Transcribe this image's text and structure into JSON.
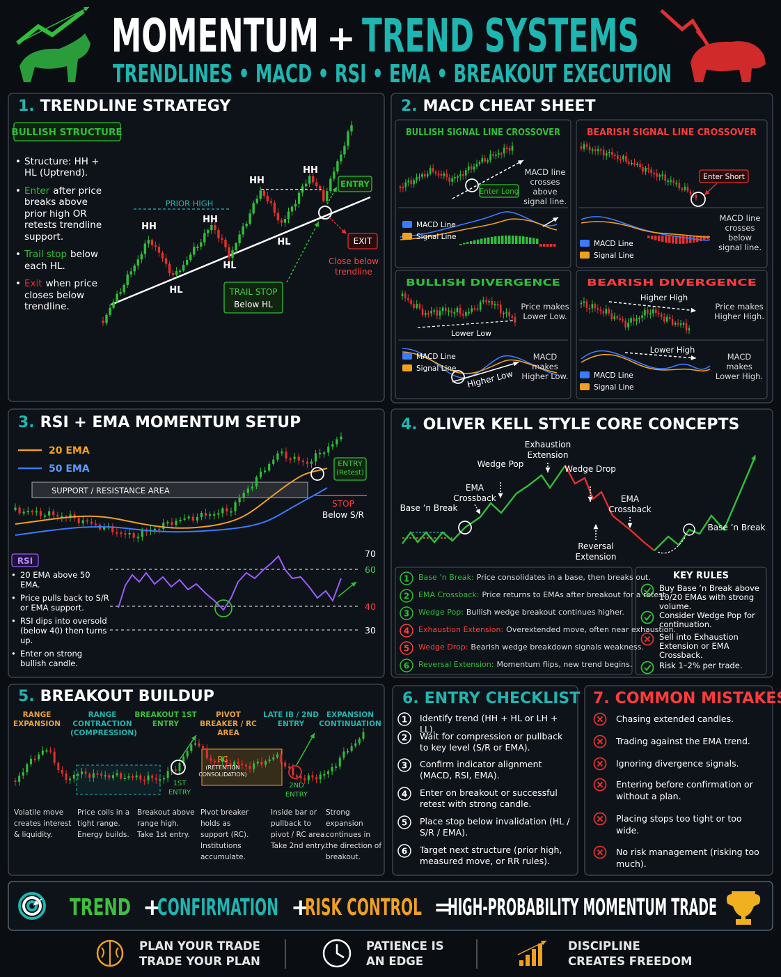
{
  "header": {
    "title_left": "MOMENTUM",
    "title_plus": "+",
    "title_right": "TREND SYSTEMS",
    "subtitle": "TRENDLINES • MACD • RSI • EMA • BREAKOUT EXECUTION"
  },
  "trendline": {
    "number": "1.",
    "title": "TRENDLINE STRATEGY",
    "badge": "BULLISH STRUCTURE",
    "bullets": [
      {
        "text": "Structure: HH + HL (Uptrend)."
      },
      {
        "lead": "Enter",
        "text": "after price breaks above prior high OR retests trendline support."
      },
      {
        "lead": "Trail stop",
        "text": "below each HL."
      },
      {
        "lead": "Exit",
        "text": "when price closes below trendline."
      }
    ],
    "swing_labels": [
      "HH",
      "HL",
      "HH",
      "HL",
      "HH",
      "HL",
      "HH"
    ],
    "prior_high": "PRIOR HIGH",
    "entry": "ENTRY",
    "exit": "EXIT",
    "exit_note": "Close below trendline",
    "trail_stop": "TRAIL STOP",
    "trail_stop_note": "Below HL"
  },
  "macd": {
    "number": "2.",
    "title": "MACD CHEAT SHEET",
    "panels": [
      {
        "title": "BULLISH SIGNAL LINE CROSSOVER",
        "tag": "Enter Long",
        "note": "MACD line crosses above signal line.",
        "legend": [
          "MACD Line",
          "Signal Line"
        ]
      },
      {
        "title": "BEARISH SIGNAL LINE CROSSOVER",
        "tag": "Enter Short",
        "note": "MACD line crosses below signal line.",
        "legend": [
          "MACD Line",
          "Signal Line"
        ]
      },
      {
        "title": "BULLISH DIVERGENCE",
        "price_label": "Lower Low",
        "price_note": "Price makes Lower Low.",
        "macd_label": "Higher Low",
        "note": "MACD makes Higher Low.",
        "legend": [
          "MACD Line",
          "Signal Line"
        ]
      },
      {
        "title": "BEARISH DIVERGENCE",
        "price_label": "Higher High",
        "price_note": "Price makes Higher High.",
        "macd_label": "Lower High",
        "note": "MACD makes Lower High.",
        "legend": [
          "MACD Line",
          "Signal Line"
        ]
      }
    ]
  },
  "rsi_ema": {
    "number": "3.",
    "title": "RSI + EMA MOMENTUM SETUP",
    "legend": [
      "20 EMA",
      "50 EMA"
    ],
    "zone": "SUPPORT / RESISTANCE AREA",
    "entry": "ENTRY",
    "entry_note": "(Retest)",
    "stop": "STOP",
    "stop_note": "Below S/R",
    "rsi_label": "RSI",
    "bullets": [
      "20 EMA above 50 EMA.",
      "Price pulls back to S/R or EMA support.",
      "RSI dips into oversold (below 40) then turns up.",
      "Enter on strong bullish candle."
    ],
    "levels": [
      "70",
      "60",
      "40",
      "30"
    ]
  },
  "kell": {
    "number": "4.",
    "title": "OLIVER KELL STYLE CORE CONCEPTS",
    "chart_labels": [
      "Base ’n Break",
      "EMA Crossback",
      "Wedge Pop",
      "Exhaustion Extension",
      "Wedge Drop",
      "EMA Crossback",
      "Reversal Extension",
      "Base ’n Break"
    ],
    "concepts": [
      {
        "num": "1",
        "term": "Base ’n Break:",
        "text": "Price consolidates in a base, then breaks out."
      },
      {
        "num": "2",
        "term": "EMA Crossback:",
        "text": "Price returns to EMAs after breakout for a retest."
      },
      {
        "num": "3",
        "term": "Wedge Pop:",
        "text": "Bullish wedge breakout continues higher."
      },
      {
        "num": "4",
        "term": "Exhaustion Extension:",
        "text": "Overextended move, often near exhaustion."
      },
      {
        "num": "5",
        "term": "Wedge Drop:",
        "text": "Bearish wedge breakdown signals weakness."
      },
      {
        "num": "6",
        "term": "Reversal Extension:",
        "text": "Momentum flips, new trend begins."
      }
    ],
    "rules_title": "KEY RULES",
    "rules": [
      {
        "ok": true,
        "text": "Buy Base ’n Break above 10/20 EMAs with strong volume."
      },
      {
        "ok": true,
        "text": "Consider Wedge Pop for continuation."
      },
      {
        "ok": false,
        "text": "Sell into Exhaustion Extension or EMA Crossback."
      },
      {
        "ok": true,
        "text": "Risk 1–2% per trade."
      }
    ]
  },
  "breakout": {
    "number": "5.",
    "title": "BREAKOUT BUILDUP",
    "stages": [
      {
        "title": "RANGE EXPANSION",
        "color": "#e8a13a",
        "text": "Volatile move creates interest & liquidity."
      },
      {
        "title": "RANGE CONTRACTION (COMPRESSION)",
        "color": "#1fb5b0",
        "text": "Price coils in a tight range. Energy builds."
      },
      {
        "title": "BREAKOUT 1ST ENTRY",
        "color": "#3fbf3f",
        "text": "Breakout above range high. Take 1st entry."
      },
      {
        "title": "PIVOT BREAKER / RC AREA",
        "color": "#e8a13a",
        "text": "Pivot breaker holds as support (RC). Institutions accumulate."
      },
      {
        "title": "LATE IB / 2ND ENTRY",
        "color": "#1fb5b0",
        "text": "Inside bar or pullback to pivot / RC area. Take 2nd entry."
      },
      {
        "title": "EXPANSION CONTINUATION",
        "color": "#1fb5b0",
        "text": "Strong expansion continues in the direction of breakout."
      }
    ],
    "rc": "RC",
    "rc_note": "(RETENTION CONSOLIDATION)",
    "first_entry": "1ST ENTRY",
    "second_entry": "2ND ENTRY"
  },
  "checklist": {
    "number": "6.",
    "title": "ENTRY CHECKLIST",
    "items": [
      {
        "num": "1",
        "text": "Identify trend (HH + HL or LH + LL)."
      },
      {
        "num": "2",
        "text": "Wait for compression or pullback to key level (S/R or EMA)."
      },
      {
        "num": "3",
        "text": "Confirm indicator alignment (MACD, RSI, EMA)."
      },
      {
        "num": "4",
        "text": "Enter on breakout or successful retest with strong candle."
      },
      {
        "num": "5",
        "text": "Place stop below invalidation (HL / S/R / EMA)."
      },
      {
        "num": "6",
        "text": "Target next structure (prior high, measured move, or RR rules)."
      }
    ]
  },
  "mistakes": {
    "number": "7.",
    "title": "COMMON MISTAKES",
    "items": [
      "Chasing extended candles.",
      "Trading against the EMA trend.",
      "Ignoring divergence signals.",
      "Entering before confirmation or without a plan.",
      "Placing stops too tight or too wide.",
      "No risk management (risking too much)."
    ]
  },
  "banner": {
    "parts": [
      {
        "text": "TREND",
        "color": "#3fbf3f"
      },
      {
        "text": "+",
        "color": "#ffffff"
      },
      {
        "text": "CONFIRMATION",
        "color": "#1fb5b0"
      },
      {
        "text": "+",
        "color": "#ffffff"
      },
      {
        "text": "RISK CONTROL",
        "color": "#f0a020"
      },
      {
        "text": "=",
        "color": "#ffffff"
      },
      {
        "text": "HIGH-PROBABILITY MOMENTUM TRADE",
        "color": "#ffffff"
      }
    ]
  },
  "footer": [
    {
      "lines": [
        "PLAN YOUR TRADE",
        "TRADE YOUR PLAN"
      ]
    },
    {
      "lines": [
        "PATIENCE IS",
        "AN EDGE"
      ]
    },
    {
      "lines": [
        "DISCIPLINE",
        "CREATES FREEDOM"
      ]
    }
  ]
}
